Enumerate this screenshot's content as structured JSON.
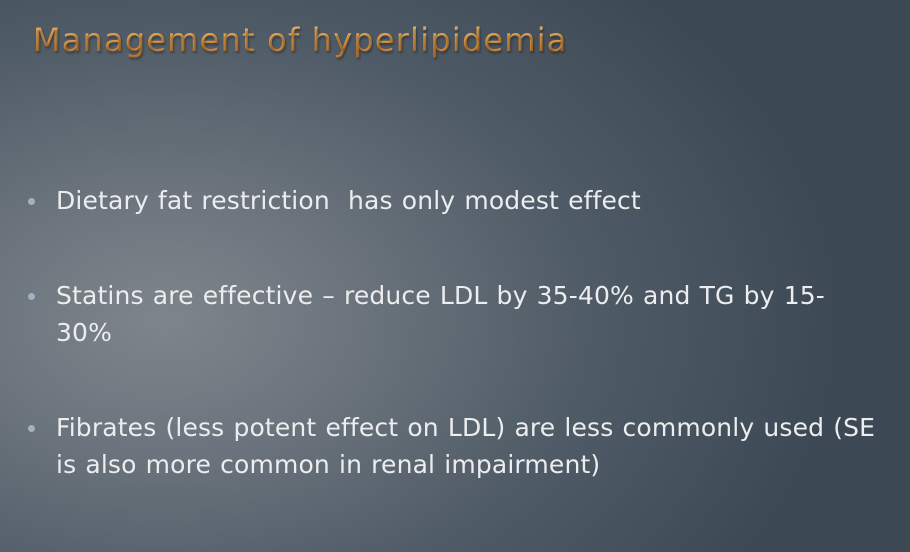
{
  "slide": {
    "title": "Management of hyperlipidemia",
    "bullets": [
      {
        "text": "Dietary fat restriction  has only modest effect"
      },
      {
        "text": "Statins are effective – reduce LDL by 35-40% and TG by 15-\n30%"
      },
      {
        "text": "Fibrates (less potent effect on LDL) are less commonly used (SE\nis also more common in renal impairment)"
      }
    ]
  },
  "colors": {
    "title": "#e8a04a",
    "body_text": "#ecedee",
    "bullet_marker": "#9eb3c4",
    "background_center": "#7e858c",
    "background_edge": "#3c4853"
  },
  "icons": {
    "bullet_marker": "bullet-dot-icon"
  }
}
